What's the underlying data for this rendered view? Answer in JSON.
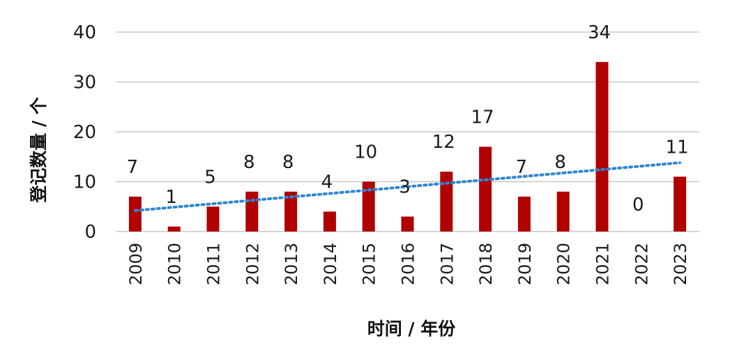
{
  "chart_data": {
    "type": "bar",
    "title": "",
    "xlabel": "时间 / 年份",
    "ylabel": "登记数量 / 个",
    "categories": [
      "2009",
      "2010",
      "2011",
      "2012",
      "2013",
      "2014",
      "2015",
      "2016",
      "2017",
      "2018",
      "2019",
      "2020",
      "2021",
      "2022",
      "2023"
    ],
    "series": [
      {
        "values": [
          7,
          1,
          5,
          8,
          8,
          4,
          10,
          3,
          12,
          17,
          7,
          8,
          34,
          0,
          11
        ],
        "color": "#b00000"
      }
    ],
    "data_labels": [
      "7",
      "1",
      "5",
      "8",
      "8",
      "4",
      "10",
      "3",
      "12",
      "17",
      "7",
      "8",
      "34",
      "0",
      "11"
    ],
    "trendline": {
      "type": "linear",
      "style": "dotted",
      "color": "#2e86d1"
    },
    "ylim": [
      0,
      40
    ],
    "yticks": [
      0,
      10,
      20,
      30,
      40
    ],
    "grid": true,
    "legend": "none"
  }
}
